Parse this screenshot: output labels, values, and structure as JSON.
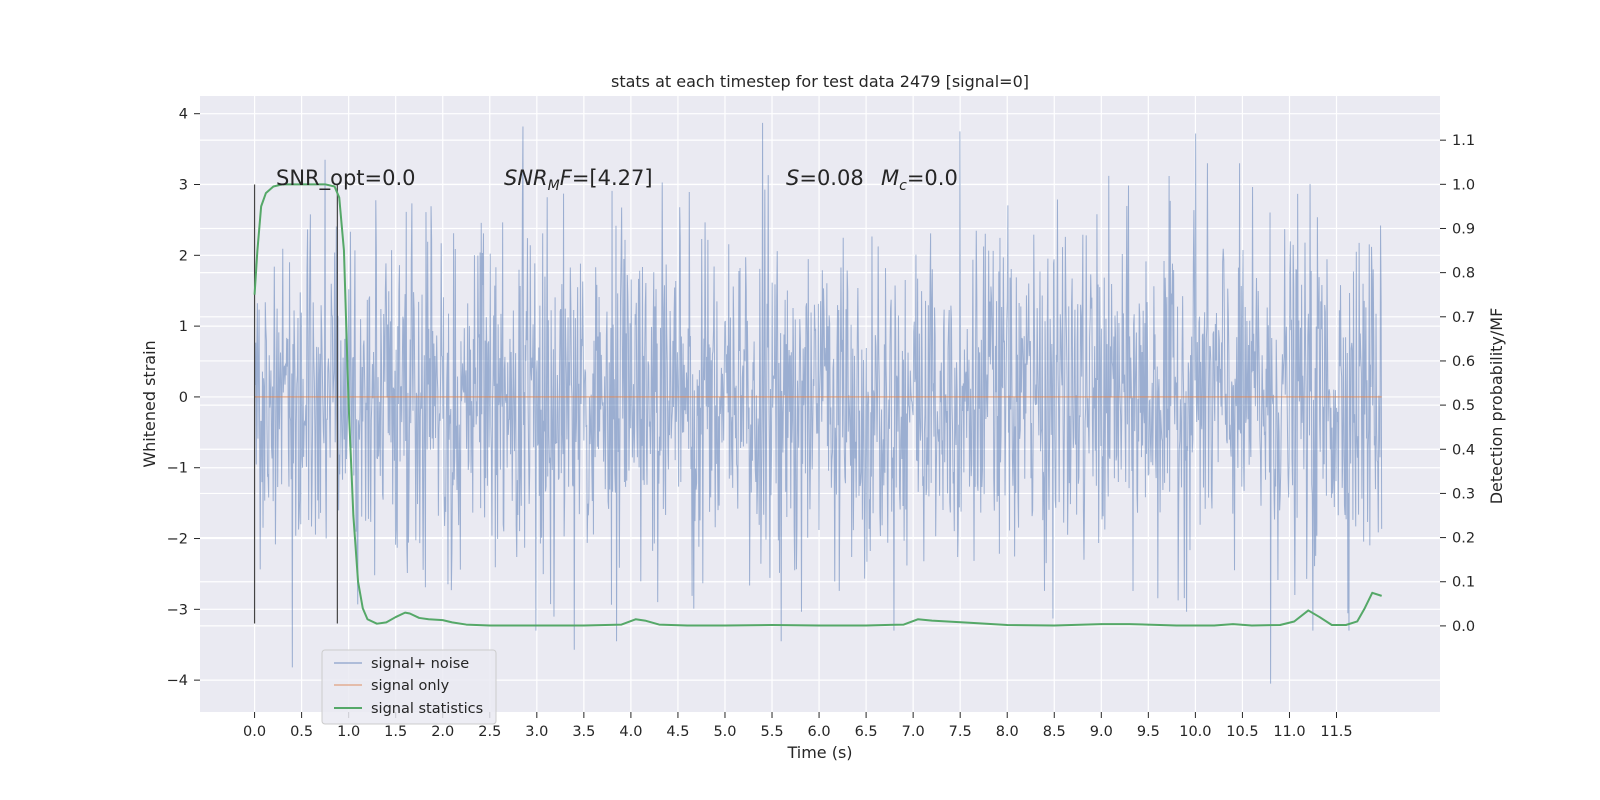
{
  "chart_data": {
    "type": "line",
    "title": "stats at each timestep for test data 2479 [signal=0]",
    "xlabel": "Time (s)",
    "ylabel": "Whitened strain",
    "ylabel_right": "Detection probability/MF",
    "xlim": [
      -0.58,
      12.6
    ],
    "ylim": [
      -4.45,
      4.25
    ],
    "ylim_right": [
      -0.195,
      1.2
    ],
    "x_ticks": [
      0.0,
      0.5,
      1.0,
      1.5,
      2.0,
      2.5,
      3.0,
      3.5,
      4.0,
      4.5,
      5.0,
      5.5,
      6.0,
      6.5,
      7.0,
      7.5,
      8.0,
      8.5,
      9.0,
      9.5,
      10.0,
      10.5,
      11.0,
      11.5
    ],
    "x_tick_labels": [
      "0.0",
      "0.5",
      "1.0",
      "1.5",
      "2.0",
      "2.5",
      "3.0",
      "3.5",
      "4.0",
      "4.5",
      "5.0",
      "5.5",
      "6.0",
      "6.5",
      "7.0",
      "7.5",
      "8.0",
      "8.5",
      "9.0",
      "9.5",
      "10.0",
      "10.5",
      "11.0",
      "11.5"
    ],
    "y_ticks": [
      -4,
      -3,
      -2,
      -1,
      0,
      1,
      2,
      3,
      4
    ],
    "y_tick_labels": [
      "−4",
      "−3",
      "−2",
      "−1",
      "0",
      "1",
      "2",
      "3",
      "4"
    ],
    "y_right_ticks": [
      0.0,
      0.1,
      0.2,
      0.3,
      0.4,
      0.5,
      0.6,
      0.7,
      0.8,
      0.9,
      1.0,
      1.1
    ],
    "y_right_tick_labels": [
      "0.0",
      "0.1",
      "0.2",
      "0.3",
      "0.4",
      "0.5",
      "0.6",
      "0.7",
      "0.8",
      "0.9",
      "1.0",
      "1.1"
    ],
    "grid": true,
    "legend_position": "lower-left",
    "series": [
      {
        "name": "signal+ noise",
        "color": "#4c72b0",
        "axis": "left",
        "x_range": [
          0.0,
          11.98
        ],
        "samples": 2000,
        "distribution": "whitened noise, std ~1.15",
        "envelope_peaks": [
          {
            "x": 0.75,
            "y": 3.35
          },
          {
            "x": 2.85,
            "y": 3.82
          },
          {
            "x": 5.4,
            "y": 3.87
          },
          {
            "x": 7.5,
            "y": 3.75
          },
          {
            "x": 10.0,
            "y": 3.72
          },
          {
            "x": 10.8,
            "y": 3.72
          },
          {
            "x": 0.4,
            "y": -3.82
          },
          {
            "x": 3.4,
            "y": -3.57
          },
          {
            "x": 3.85,
            "y": -3.45
          },
          {
            "x": 10.8,
            "y": -4.05
          },
          {
            "x": 11.25,
            "y": -3.3
          },
          {
            "x": 5.6,
            "y": -3.45
          }
        ]
      },
      {
        "name": "signal only",
        "color": "#dd8452",
        "axis": "left",
        "x": [
          0.0,
          11.98
        ],
        "y": [
          0.0,
          0.0
        ]
      },
      {
        "name": "signal statistics",
        "color": "#55a868",
        "axis": "right",
        "x": [
          0.0,
          0.03,
          0.07,
          0.12,
          0.2,
          0.3,
          0.45,
          0.6,
          0.75,
          0.85,
          0.9,
          0.95,
          1.0,
          1.05,
          1.1,
          1.15,
          1.2,
          1.3,
          1.4,
          1.5,
          1.6,
          1.65,
          1.75,
          1.85,
          2.0,
          2.1,
          2.25,
          2.5,
          3.0,
          3.5,
          3.9,
          4.05,
          4.15,
          4.3,
          4.6,
          5.0,
          5.5,
          6.0,
          6.5,
          6.9,
          7.05,
          7.2,
          7.6,
          8.0,
          8.5,
          9.0,
          9.3,
          9.8,
          10.2,
          10.4,
          10.6,
          10.9,
          11.05,
          11.2,
          11.32,
          11.45,
          11.6,
          11.72,
          11.8,
          11.88,
          11.98
        ],
        "y": [
          0.75,
          0.85,
          0.95,
          0.98,
          0.995,
          1.0,
          1.0,
          1.0,
          1.0,
          0.995,
          0.97,
          0.85,
          0.5,
          0.25,
          0.1,
          0.04,
          0.015,
          0.005,
          0.008,
          0.02,
          0.03,
          0.028,
          0.018,
          0.015,
          0.013,
          0.008,
          0.003,
          0.001,
          0.001,
          0.001,
          0.003,
          0.015,
          0.012,
          0.003,
          0.001,
          0.001,
          0.002,
          0.001,
          0.001,
          0.003,
          0.015,
          0.012,
          0.007,
          0.002,
          0.001,
          0.004,
          0.004,
          0.001,
          0.001,
          0.004,
          0.001,
          0.002,
          0.01,
          0.035,
          0.02,
          0.002,
          0.002,
          0.01,
          0.04,
          0.075,
          0.068
        ]
      },
      {
        "name": "",
        "color": "#444444",
        "axis": "left",
        "type": "vertical-lines",
        "lines": [
          {
            "x": 0.0,
            "y": [
              -3.2,
              3.0
            ]
          },
          {
            "x": 0.88,
            "y": [
              -3.2,
              3.0
            ]
          }
        ]
      }
    ],
    "annotations": {
      "snr_opt": "SNR_opt=0.0",
      "snr_mf": "=[4.27]",
      "snr_mf_base": "SNR",
      "snr_mf_sub": "M",
      "snr_mf_tail": "F",
      "s_value": "=0.08",
      "s_symbol": "S",
      "mc_symbol": "M",
      "mc_sub": "c",
      "mc_value": "=0.0"
    }
  }
}
